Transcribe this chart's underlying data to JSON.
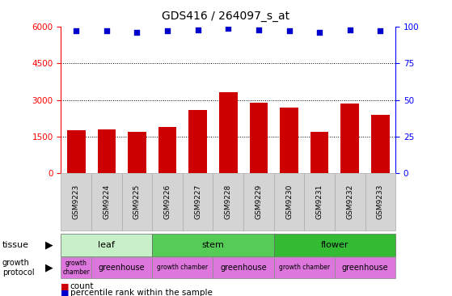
{
  "title": "GDS416 / 264097_s_at",
  "samples": [
    "GSM9223",
    "GSM9224",
    "GSM9225",
    "GSM9226",
    "GSM9227",
    "GSM9228",
    "GSM9229",
    "GSM9230",
    "GSM9231",
    "GSM9232",
    "GSM9233"
  ],
  "counts": [
    1750,
    1780,
    1680,
    1900,
    2600,
    3300,
    2900,
    2700,
    1700,
    2850,
    2400
  ],
  "percentiles": [
    97,
    97,
    96,
    97,
    98,
    99,
    98,
    97,
    96,
    98,
    97
  ],
  "ylim_left": [
    0,
    6000
  ],
  "ylim_right": [
    0,
    100
  ],
  "yticks_left": [
    0,
    1500,
    3000,
    4500,
    6000
  ],
  "yticks_right": [
    0,
    25,
    50,
    75,
    100
  ],
  "bar_color": "#cc0000",
  "dot_color": "#0000cc",
  "tissue_data": [
    {
      "label": "leaf",
      "start": 0,
      "end": 3,
      "color": "#c8f0c8"
    },
    {
      "label": "stem",
      "start": 3,
      "end": 7,
      "color": "#55cc55"
    },
    {
      "label": "flower",
      "start": 7,
      "end": 11,
      "color": "#33bb33"
    }
  ],
  "protocol_data": [
    {
      "label": "growth\nchamber",
      "start": 0,
      "end": 1
    },
    {
      "label": "greenhouse",
      "start": 1,
      "end": 3
    },
    {
      "label": "growth chamber",
      "start": 3,
      "end": 5
    },
    {
      "label": "greenhouse",
      "start": 5,
      "end": 7
    },
    {
      "label": "growth chamber",
      "start": 7,
      "end": 9
    },
    {
      "label": "greenhouse",
      "start": 9,
      "end": 11
    }
  ],
  "protocol_color": "#dd77dd",
  "xtick_bg": "#d4d4d4",
  "legend_items": [
    {
      "label": "count",
      "color": "#cc0000"
    },
    {
      "label": "percentile rank within the sample",
      "color": "#0000cc"
    }
  ]
}
